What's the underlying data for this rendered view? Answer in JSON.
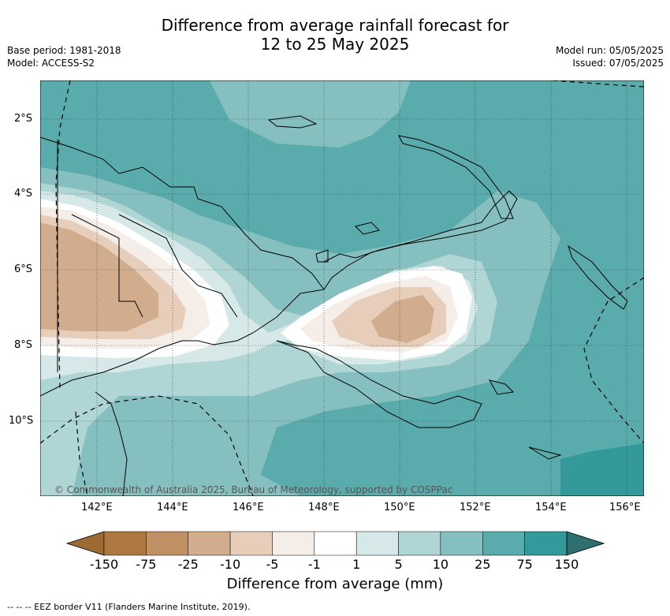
{
  "title_line1": "Difference from average rainfall forecast for",
  "title_line2": "12 to 25 May 2025",
  "meta": {
    "base_period": "Base period: 1981-2018",
    "model": "Model: ACCESS-S2",
    "model_run": "Model run: 05/05/2025",
    "issued": "Issued: 07/05/2025"
  },
  "lat_ticks": [
    "2°S",
    "4°S",
    "6°S",
    "8°S",
    "10°S"
  ],
  "lon_ticks": [
    "142°E",
    "144°E",
    "146°E",
    "148°E",
    "150°E",
    "152°E",
    "154°E",
    "156°E"
  ],
  "copyright": "© Commonwealth of Australia 2025, Bureau of Meteorology, supported by COSPPac",
  "colorbar": {
    "labels": [
      "-150",
      "-75",
      "-25",
      "-10",
      "-5",
      "-1",
      "1",
      "5",
      "10",
      "25",
      "75",
      "150"
    ],
    "colors": [
      "#9c6a33",
      "#ad7840",
      "#c19065",
      "#d2ad8d",
      "#e6cebb",
      "#f5ede7",
      "#ffffff",
      "#d6e9e8",
      "#afd5d5",
      "#86bfbf",
      "#5aabab",
      "#33999a",
      "#2e7070"
    ],
    "title": "Difference from average (mm)"
  },
  "legend_text": "--  --  -- EEZ border V11 (Flanders Marine Institute, 2019)."
}
